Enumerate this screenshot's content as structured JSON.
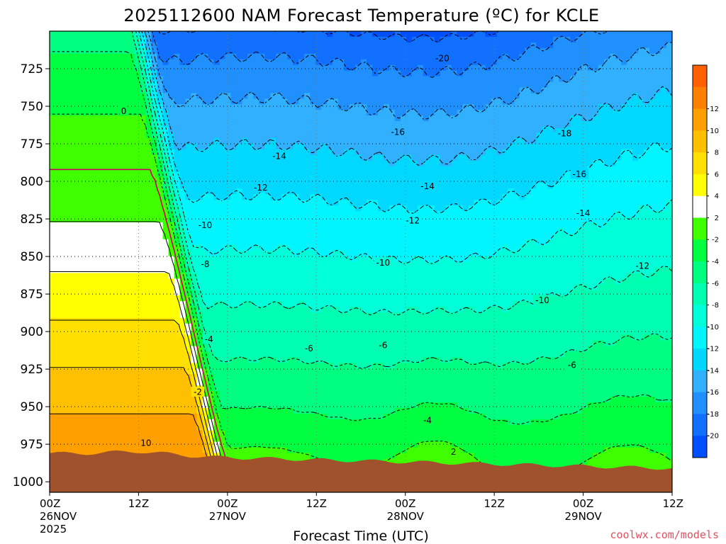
{
  "chart_data": {
    "type": "heatmap",
    "title": "2025112600 NAM Forecast Temperature (ºC) for KCLE",
    "xlabel": "Forecast Time (UTC)",
    "ylabel": "",
    "credit": "coolwx.com/models",
    "x_ticks": [
      {
        "hour": 0,
        "line1": "00Z",
        "line2": "26NOV",
        "line3": "2025"
      },
      {
        "hour": 12,
        "line1": "12Z",
        "line2": "",
        "line3": ""
      },
      {
        "hour": 24,
        "line1": "00Z",
        "line2": "27NOV",
        "line3": ""
      },
      {
        "hour": 36,
        "line1": "12Z",
        "line2": "",
        "line3": ""
      },
      {
        "hour": 48,
        "line1": "00Z",
        "line2": "28NOV",
        "line3": ""
      },
      {
        "hour": 60,
        "line1": "12Z",
        "line2": "",
        "line3": ""
      },
      {
        "hour": 72,
        "line1": "00Z",
        "line2": "29NOV",
        "line3": ""
      },
      {
        "hour": 84,
        "line1": "12Z",
        "line2": "",
        "line3": ""
      }
    ],
    "xlim": [
      0,
      84
    ],
    "y_ticks": [
      725,
      750,
      775,
      800,
      825,
      850,
      875,
      900,
      925,
      950,
      975,
      1000
    ],
    "ylim": [
      1007,
      700
    ],
    "grid": true,
    "colorbar": {
      "levels": [
        -22,
        -20,
        -18,
        -16,
        -14,
        -12,
        -10,
        -8,
        -6,
        -4,
        -2,
        2,
        4,
        6,
        8,
        10,
        12,
        14
      ],
      "labels": [
        "-20",
        "-18",
        "-16",
        "-14",
        "-12",
        "-10",
        "-8",
        "-6",
        "-4",
        "-2",
        "2",
        "4",
        "6",
        "8",
        "10",
        "12"
      ],
      "colors": [
        "#0050ff",
        "#1170ff",
        "#2090ff",
        "#30b0ff",
        "#00d8ff",
        "#00f5ff",
        "#00ffd8",
        "#00ffb0",
        "#00ff80",
        "#00ff40",
        "#40ff00",
        "#ffffff",
        "#ffff00",
        "#ffe000",
        "#ffc000",
        "#ffa000",
        "#ff8000",
        "#ff6000"
      ],
      "zero_line_color": "#cc0066",
      "terrain_color": "#a0522d"
    },
    "contour_labels": [
      {
        "text": "-20",
        "hour": 53,
        "p": 718
      },
      {
        "text": "-18",
        "hour": 69.5,
        "p": 768
      },
      {
        "text": "-16",
        "hour": 47,
        "p": 767
      },
      {
        "text": "-16",
        "hour": 71.5,
        "p": 795
      },
      {
        "text": "-14",
        "hour": 31,
        "p": 783
      },
      {
        "text": "-14",
        "hour": 51,
        "p": 803
      },
      {
        "text": "-14",
        "hour": 72,
        "p": 821
      },
      {
        "text": "-12",
        "hour": 28.5,
        "p": 804
      },
      {
        "text": "-12",
        "hour": 49,
        "p": 826
      },
      {
        "text": "-12",
        "hour": 80,
        "p": 856
      },
      {
        "text": "-10",
        "hour": 21,
        "p": 829
      },
      {
        "text": "-10",
        "hour": 45,
        "p": 854
      },
      {
        "text": "-10",
        "hour": 66.5,
        "p": 879
      },
      {
        "text": "-8",
        "hour": 21,
        "p": 855
      },
      {
        "text": "-6",
        "hour": 35,
        "p": 911
      },
      {
        "text": "-6",
        "hour": 45,
        "p": 909
      },
      {
        "text": "-6",
        "hour": 70.5,
        "p": 922
      },
      {
        "text": "-4",
        "hour": 21.5,
        "p": 905
      },
      {
        "text": "-4",
        "hour": 51,
        "p": 959
      },
      {
        "text": "-2",
        "hour": 20,
        "p": 940
      },
      {
        "text": "2",
        "hour": 54.5,
        "p": 980
      },
      {
        "text": "0",
        "hour": 10,
        "p": 753
      },
      {
        "text": "10",
        "hour": 13,
        "p": 974
      }
    ],
    "temperature_field_note_removed": true
  }
}
